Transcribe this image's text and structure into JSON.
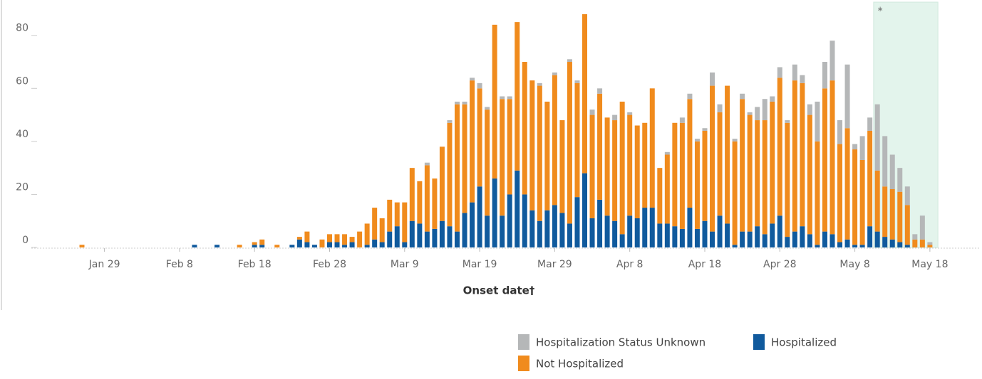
{
  "chart_data": {
    "type": "stacked_bar",
    "xlabel": "Onset date†",
    "annotation": "*",
    "categories": [
      null,
      null,
      null,
      "Jan 29",
      null,
      null,
      null,
      null,
      null,
      null,
      null,
      null,
      null,
      "Feb 8",
      null,
      null,
      null,
      null,
      null,
      null,
      null,
      null,
      null,
      "Feb 18",
      null,
      null,
      null,
      null,
      null,
      null,
      null,
      null,
      null,
      "Feb 28",
      null,
      null,
      null,
      null,
      null,
      null,
      null,
      null,
      null,
      "Mar 9",
      null,
      null,
      null,
      null,
      null,
      null,
      null,
      null,
      null,
      "Mar 19",
      null,
      null,
      null,
      null,
      null,
      null,
      null,
      null,
      null,
      "Mar 29",
      null,
      null,
      null,
      null,
      null,
      null,
      null,
      null,
      null,
      "Apr 8",
      null,
      null,
      null,
      null,
      null,
      null,
      null,
      null,
      null,
      "Apr 18",
      null,
      null,
      null,
      null,
      null,
      null,
      null,
      null,
      null,
      "Apr 28",
      null,
      null,
      null,
      null,
      null,
      null,
      null,
      null,
      null,
      "May 8",
      null,
      null,
      null,
      null,
      null,
      null,
      null,
      null,
      null,
      "May 18"
    ],
    "series": [
      {
        "name": "Hospitalization Status Unknown",
        "color": "#b5b7b8",
        "values": [
          0,
          0,
          0,
          0,
          0,
          0,
          0,
          0,
          0,
          0,
          0,
          0,
          0,
          0,
          0,
          0,
          0,
          0,
          0,
          0,
          0,
          0,
          0,
          0,
          0,
          0,
          0,
          0,
          0,
          0,
          0,
          0,
          0,
          0,
          0,
          0,
          0,
          0,
          0,
          0,
          0,
          0,
          0,
          0,
          0,
          0,
          1,
          0,
          0,
          1,
          1,
          1,
          1,
          2,
          1,
          0,
          1,
          1,
          0,
          0,
          0,
          1,
          0,
          1,
          0,
          1,
          1,
          0,
          2,
          2,
          0,
          2,
          0,
          1,
          0,
          0,
          0,
          0,
          1,
          0,
          2,
          2,
          1,
          1,
          5,
          3,
          0,
          1,
          2,
          1,
          5,
          8,
          2,
          4,
          1,
          6,
          3,
          4,
          15,
          10,
          15,
          9,
          24,
          2,
          9,
          5,
          25,
          19,
          13,
          9,
          7,
          2,
          9,
          1
        ]
      },
      {
        "name": "Hospitalized",
        "color": "#105a9d",
        "values": [
          0,
          0,
          0,
          0,
          0,
          0,
          0,
          0,
          0,
          0,
          0,
          0,
          0,
          0,
          0,
          1,
          0,
          0,
          1,
          0,
          0,
          0,
          0,
          1,
          1,
          0,
          0,
          0,
          1,
          3,
          2,
          1,
          0,
          2,
          2,
          1,
          2,
          0,
          1,
          3,
          2,
          6,
          8,
          2,
          10,
          9,
          6,
          7,
          10,
          8,
          6,
          13,
          17,
          23,
          12,
          26,
          12,
          20,
          29,
          20,
          14,
          10,
          14,
          16,
          13,
          9,
          19,
          28,
          11,
          18,
          12,
          10,
          5,
          12,
          11,
          15,
          15,
          9,
          9,
          8,
          7,
          15,
          7,
          10,
          6,
          12,
          9,
          1,
          6,
          6,
          8,
          5,
          9,
          12,
          4,
          6,
          8,
          5,
          1,
          6,
          5,
          2,
          3,
          1,
          1,
          8,
          6,
          4,
          3,
          2,
          1,
          0,
          0,
          0
        ]
      },
      {
        "name": "Not Hospitalized",
        "color": "#f08b1d",
        "values": [
          1,
          0,
          0,
          0,
          0,
          0,
          0,
          0,
          0,
          0,
          0,
          0,
          0,
          0,
          0,
          0,
          0,
          0,
          0,
          0,
          0,
          1,
          0,
          1,
          2,
          0,
          1,
          0,
          0,
          1,
          4,
          0,
          3,
          3,
          3,
          4,
          2,
          6,
          8,
          12,
          9,
          12,
          9,
          15,
          20,
          16,
          25,
          19,
          28,
          39,
          48,
          41,
          46,
          37,
          40,
          58,
          44,
          36,
          56,
          50,
          49,
          51,
          41,
          49,
          35,
          61,
          43,
          60,
          39,
          40,
          37,
          38,
          50,
          38,
          35,
          32,
          45,
          21,
          26,
          39,
          40,
          41,
          33,
          34,
          55,
          39,
          52,
          39,
          50,
          44,
          40,
          43,
          46,
          52,
          43,
          57,
          54,
          45,
          39,
          54,
          58,
          37,
          42,
          36,
          32,
          36,
          23,
          19,
          19,
          19,
          15,
          3,
          3,
          1
        ]
      }
    ],
    "ylim": [
      0,
      92
    ],
    "yticks": [
      0,
      20,
      40,
      60,
      80
    ],
    "grid": false
  }
}
